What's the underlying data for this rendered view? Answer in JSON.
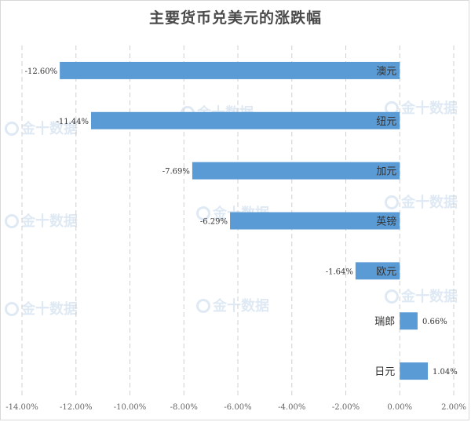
{
  "chart_data": {
    "type": "bar",
    "orientation": "horizontal",
    "title": "主要货币兑美元的涨跌幅",
    "categories": [
      "澳元",
      "纽元",
      "加元",
      "英镑",
      "欧元",
      "瑞郎",
      "日元"
    ],
    "values": [
      -12.6,
      -11.44,
      -7.69,
      -6.29,
      -1.64,
      0.66,
      1.04
    ],
    "value_labels": [
      "-12.60%",
      "-11.44%",
      "-7.69%",
      "-6.29%",
      "-1.64%",
      "0.66%",
      "1.04%"
    ],
    "x_ticks": [
      "-14.00%",
      "-12.00%",
      "-10.00%",
      "-8.00%",
      "-6.00%",
      "-4.00%",
      "-2.00%",
      "0.00%",
      "2.00%"
    ],
    "xlim": [
      -14,
      2
    ],
    "grid": "vertical dashed",
    "bar_color": "#5b9bd5"
  },
  "watermark": "金十数据"
}
